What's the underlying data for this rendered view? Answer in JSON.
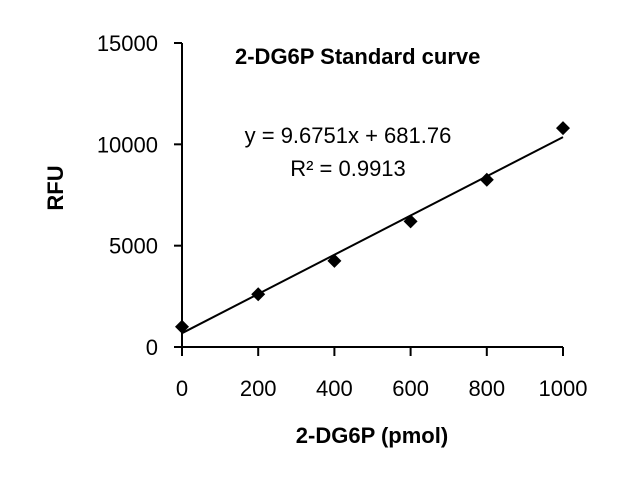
{
  "chart_data": {
    "type": "scatter",
    "title": "2-DG6P Standard curve",
    "xlabel": "2-DG6P (pmol)",
    "ylabel": "RFU",
    "xlim": [
      0,
      1000
    ],
    "ylim": [
      0,
      15000
    ],
    "x_ticks": [
      0,
      200,
      400,
      600,
      800,
      1000
    ],
    "y_ticks": [
      0,
      5000,
      10000,
      15000
    ],
    "x_tick_labels": [
      "0",
      "200",
      "400",
      "600",
      "800",
      "1000"
    ],
    "y_tick_labels": [
      "0",
      "5000",
      "10000",
      "15000"
    ],
    "series": [
      {
        "marker": "diamond",
        "color": "#000000",
        "x": [
          0,
          200,
          400,
          600,
          800,
          1000
        ],
        "y": [
          1000,
          2600,
          4250,
          6200,
          8250,
          10800
        ]
      }
    ],
    "trendline": {
      "slope": 9.6751,
      "intercept": 681.76,
      "x_range": [
        0,
        1000
      ],
      "equation": "y = 9.6751x + 681.76",
      "r_squared": "R² = 0.9913"
    },
    "grid": false,
    "legend": "none"
  }
}
